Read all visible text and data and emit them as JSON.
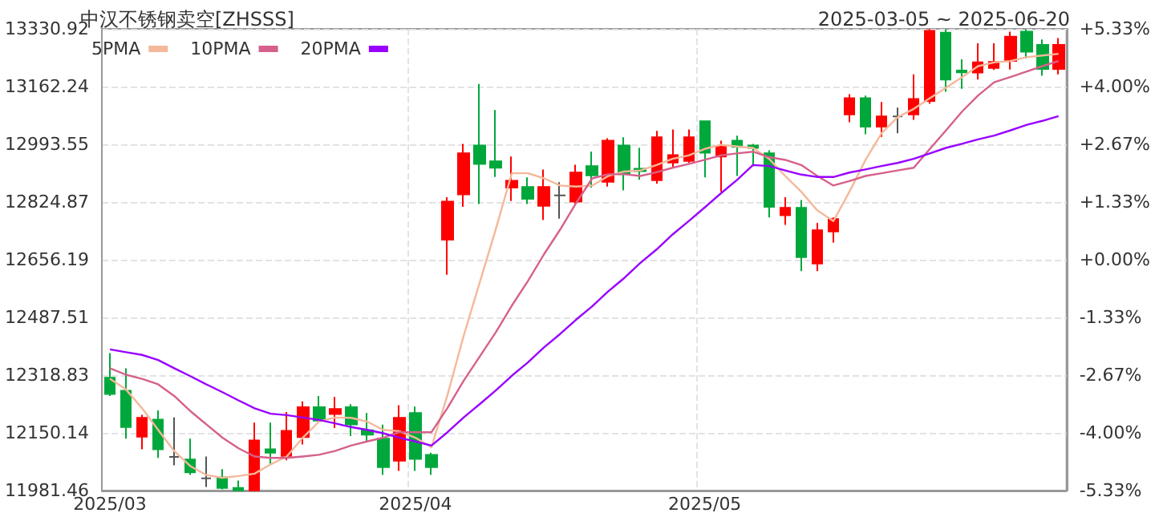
{
  "chart_data": {
    "type": "candlestick",
    "title": "中汉不锈钢卖空[ZHSSS]",
    "subtitle": "2025-03-05 ~ 2025-06-20",
    "categories": [
      "2025/03",
      null,
      null,
      null,
      null,
      null,
      null,
      null,
      null,
      null,
      null,
      null,
      null,
      null,
      null,
      null,
      null,
      null,
      null,
      "2025/04",
      null,
      null,
      null,
      null,
      null,
      null,
      null,
      null,
      null,
      null,
      null,
      null,
      null,
      null,
      null,
      null,
      null,
      "2025/05",
      null,
      null,
      null,
      null,
      null,
      null,
      null,
      null,
      null,
      null,
      null,
      null,
      null,
      null,
      null,
      null,
      null,
      null,
      null,
      null,
      null,
      null
    ],
    "ohlc": [
      [
        12311,
        12383,
        12258,
        12264
      ],
      [
        12273,
        12339,
        12133,
        12167
      ],
      [
        12139,
        12203,
        12102,
        12194
      ],
      [
        12189,
        12216,
        12077,
        12102
      ],
      [
        12080,
        12195,
        12055,
        12080
      ],
      [
        12072,
        12133,
        12027,
        12035
      ],
      [
        12017,
        12081,
        11992,
        12017
      ],
      [
        12020,
        12044,
        11985,
        11989
      ],
      [
        11989,
        12011,
        11982,
        11982
      ],
      [
        11982,
        12180,
        11982,
        12128
      ],
      [
        12102,
        12180,
        12058,
        12092
      ],
      [
        12083,
        12211,
        12070,
        12156
      ],
      [
        12138,
        12242,
        12116,
        12225
      ],
      [
        12225,
        12258,
        12180,
        12186
      ],
      [
        12205,
        12255,
        12164,
        12220
      ],
      [
        12225,
        12234,
        12141,
        12175
      ],
      [
        12158,
        12208,
        12125,
        12145
      ],
      [
        12133,
        12174,
        12027,
        12050
      ],
      [
        12069,
        12231,
        12039,
        12194
      ],
      [
        12208,
        12227,
        12039,
        12074
      ],
      [
        12086,
        12092,
        12027,
        12050
      ],
      [
        12715,
        12839,
        12612,
        12826
      ],
      [
        12847,
        12995,
        12811,
        12967
      ],
      [
        12990,
        13170,
        12819,
        12936
      ],
      [
        12944,
        13094,
        12898,
        12925
      ],
      [
        12867,
        12958,
        12828,
        12887
      ],
      [
        12869,
        12897,
        12819,
        12834
      ],
      [
        12814,
        12920,
        12772,
        12869
      ],
      [
        12844,
        12883,
        12776,
        12844
      ],
      [
        12826,
        12934,
        12820,
        12911
      ],
      [
        12930,
        12972,
        12867,
        12903
      ],
      [
        12884,
        13011,
        12870,
        13004
      ],
      [
        12990,
        13014,
        12859,
        12906
      ],
      [
        12922,
        12983,
        12890,
        12915
      ],
      [
        12889,
        13033,
        12878,
        13014
      ],
      [
        12940,
        13037,
        12925,
        12962
      ],
      [
        12945,
        13037,
        12939,
        13014
      ],
      [
        13061,
        13061,
        12897,
        12969
      ],
      [
        12958,
        13004,
        12855,
        12986
      ],
      [
        13004,
        13019,
        12901,
        12986
      ],
      [
        12990,
        12995,
        12930,
        12983
      ],
      [
        12967,
        12976,
        12780,
        12811
      ],
      [
        12786,
        12839,
        12758,
        12808
      ],
      [
        12808,
        12831,
        12623,
        12664
      ],
      [
        12645,
        12764,
        12623,
        12742
      ],
      [
        12739,
        12780,
        12706,
        12775
      ],
      [
        13081,
        13140,
        13058,
        13128
      ],
      [
        13128,
        13136,
        13023,
        13045
      ],
      [
        13045,
        13117,
        13015,
        13075
      ],
      [
        13075,
        13101,
        13026,
        13075
      ],
      [
        13081,
        13198,
        13065,
        13126
      ],
      [
        13120,
        13330,
        13112,
        13325
      ],
      [
        13320,
        13330,
        13147,
        13183
      ],
      [
        13209,
        13242,
        13156,
        13204
      ],
      [
        13203,
        13289,
        13183,
        13233
      ],
      [
        13217,
        13289,
        13211,
        13234
      ],
      [
        13237,
        13323,
        13212,
        13308
      ],
      [
        13323,
        13330,
        13245,
        13264
      ],
      [
        13284,
        13300,
        13194,
        13214
      ],
      [
        13214,
        13304,
        13198,
        13284
      ]
    ],
    "colors": [
      "#00a83c",
      "#00a83c",
      "#ff0000",
      "#00a83c",
      "#555555",
      "#00a83c",
      "#555555",
      "#00a83c",
      "#00a83c",
      "#ff0000",
      "#00a83c",
      "#ff0000",
      "#ff0000",
      "#00a83c",
      "#ff0000",
      "#00a83c",
      "#00a83c",
      "#00a83c",
      "#ff0000",
      "#00a83c",
      "#00a83c",
      "#ff0000",
      "#ff0000",
      "#00a83c",
      "#00a83c",
      "#ff0000",
      "#00a83c",
      "#ff0000",
      "#555555",
      "#ff0000",
      "#00a83c",
      "#ff0000",
      "#00a83c",
      "#00a83c",
      "#ff0000",
      "#ff0000",
      "#ff0000",
      "#00a83c",
      "#ff0000",
      "#00a83c",
      "#00a83c",
      "#00a83c",
      "#ff0000",
      "#00a83c",
      "#ff0000",
      "#ff0000",
      "#ff0000",
      "#00a83c",
      "#ff0000",
      "#555555",
      "#ff0000",
      "#ff0000",
      "#00a83c",
      "#00a83c",
      "#ff0000",
      "#ff0000",
      "#ff0000",
      "#00a83c",
      "#00a83c",
      "#ff0000"
    ],
    "series": [
      {
        "name": "5PMA",
        "type": "line",
        "color": "#f4b89a",
        "values": [
          12308,
          12277,
          12222,
          12159,
          12097,
          12053,
          12027,
          12019,
          12024,
          12031,
          12058,
          12081,
          12136,
          12183,
          12195,
          12194,
          12183,
          12159,
          12155,
          12136,
          12108,
          12261,
          12433,
          12589,
          12745,
          12909,
          12909,
          12894,
          12873,
          12870,
          12873,
          12901,
          12914,
          12917,
          12933,
          12951,
          12961,
          12980,
          12992,
          12987,
          12983,
          12951,
          12901,
          12855,
          12800,
          12769,
          12855,
          12948,
          13026,
          13073,
          13097,
          13128,
          13159,
          13190,
          13222,
          13233,
          13237,
          13248,
          13253,
          13258
        ]
      },
      {
        "name": "10PMA",
        "type": "line",
        "color": "#d6608c",
        "values": [
          12339,
          12320,
          12308,
          12292,
          12258,
          12214,
          12175,
          12136,
          12105,
          12081,
          12077,
          12077,
          12081,
          12086,
          12097,
          12113,
          12125,
          12136,
          12152,
          12152,
          12152,
          12223,
          12302,
          12373,
          12444,
          12522,
          12594,
          12672,
          12744,
          12822,
          12894,
          12906,
          12906,
          12901,
          12912,
          12925,
          12936,
          12948,
          12961,
          12967,
          12972,
          12956,
          12948,
          12933,
          12901,
          12873,
          12886,
          12901,
          12909,
          12917,
          12925,
          12980,
          13034,
          13089,
          13136,
          13175,
          13190,
          13206,
          13222,
          13237
        ]
      },
      {
        "name": "20PMA",
        "type": "line",
        "color": "#9900ff",
        "values": [
          12394,
          12386,
          12378,
          12363,
          12339,
          12316,
          12292,
          12269,
          12245,
          12222,
          12206,
          12202,
          12195,
          12188,
          12178,
          12167,
          12159,
          12149,
          12136,
          12125,
          12113,
          12152,
          12195,
          12234,
          12274,
          12317,
          12356,
          12400,
          12439,
          12481,
          12520,
          12564,
          12603,
          12647,
          12686,
          12730,
          12769,
          12809,
          12850,
          12889,
          12933,
          12930,
          12917,
          12905,
          12898,
          12898,
          12911,
          12920,
          12930,
          12939,
          12951,
          12967,
          12983,
          12995,
          13008,
          13019,
          13034,
          13050,
          13062,
          13076
        ]
      }
    ],
    "ylim": [
      11981.46,
      13330.92
    ],
    "yticks": [
      11981.46,
      12150.14,
      12318.83,
      12487.51,
      12656.19,
      12824.87,
      12993.55,
      13162.24,
      13330.92
    ],
    "y2lim": [
      -5.33,
      5.33
    ],
    "y2ticks": [
      {
        "value": -5.33,
        "label": "-5.33%"
      },
      {
        "value": -4,
        "label": "-4.00%"
      },
      {
        "value": -2.67,
        "label": "-2.67%"
      },
      {
        "value": -1.33,
        "label": "-1.33%"
      },
      {
        "value": 0,
        "label": "+0.00%"
      },
      {
        "value": 1.33,
        "label": "+1.33%"
      },
      {
        "value": 2.67,
        "label": "+2.67%"
      },
      {
        "value": 4,
        "label": "+4.00%"
      },
      {
        "value": 5.33,
        "label": "+5.33%"
      }
    ],
    "grid": true,
    "legend": "top left",
    "marker": "none",
    "line_style": "solid"
  }
}
